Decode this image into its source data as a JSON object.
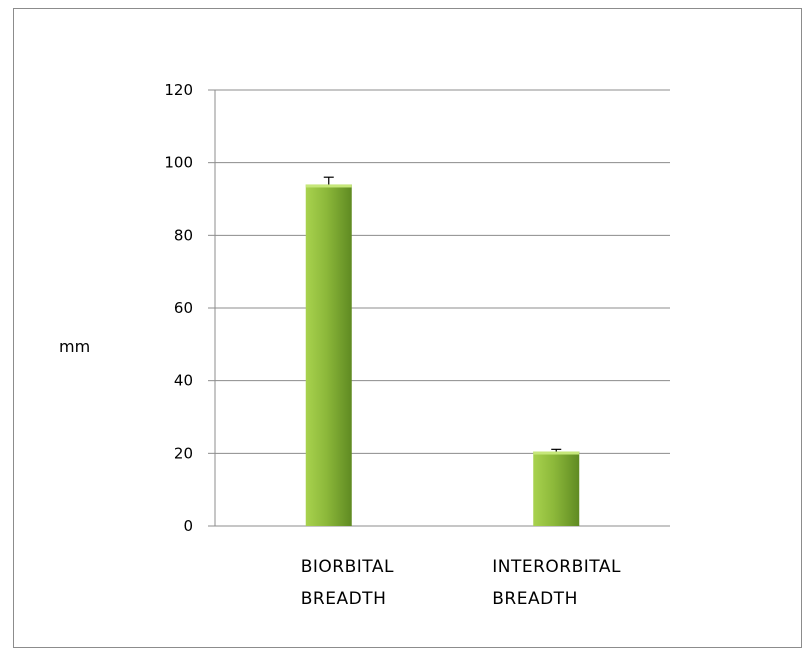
{
  "chart_data": {
    "type": "bar",
    "categories": [
      "BIORBITAL BREADTH",
      "INTERORBITAL BREADTH"
    ],
    "category_lines": [
      [
        "BIORBITAL",
        "BREADTH"
      ],
      [
        "INTERORBITAL",
        "BREADTH"
      ]
    ],
    "values": [
      94,
      20.5
    ],
    "errors": [
      2,
      0.6
    ],
    "ylabel": "mm",
    "xlabel": "",
    "title": "",
    "ylim": [
      0,
      120
    ],
    "yticks": [
      0,
      20,
      40,
      60,
      80,
      100,
      120
    ],
    "grid": true,
    "legend": "none",
    "colors": {
      "bar_light": "#a8d24e",
      "bar_mid": "#8cb83a",
      "bar_dark": "#5f8a22",
      "bar_top": "#c6e77a",
      "gridline": "#8c8c8c",
      "axis": "#8c8c8c",
      "errorbar": "#000000"
    }
  }
}
